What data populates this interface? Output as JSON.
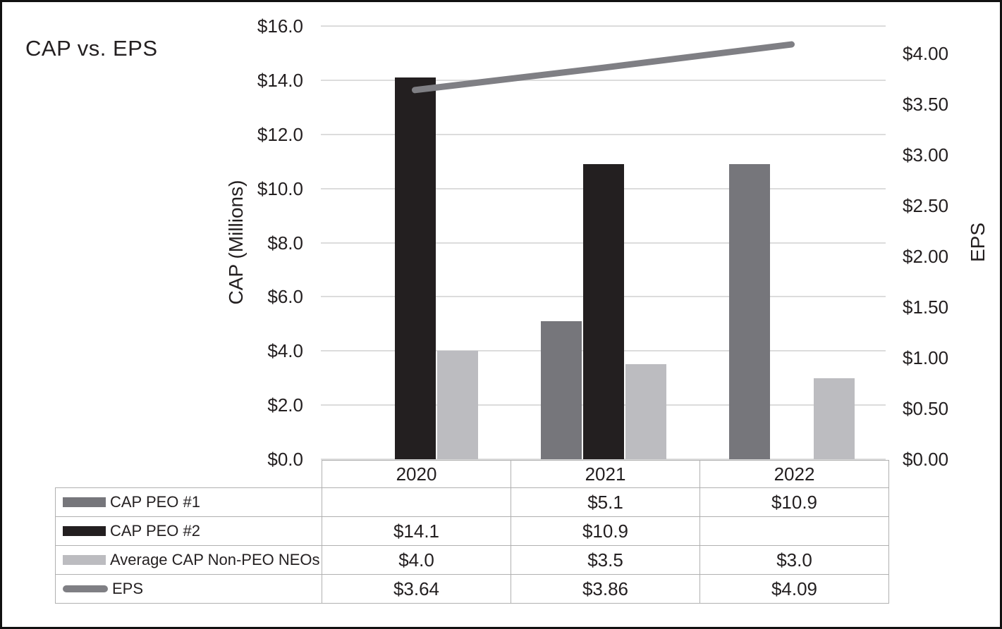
{
  "chart_data": {
    "type": "combo-bar-line",
    "title": "CAP vs. EPS",
    "categories": [
      "2020",
      "2021",
      "2022"
    ],
    "bar_series": [
      {
        "name": "CAP PEO #1",
        "color": "#76767b",
        "values": [
          null,
          5.1,
          10.9
        ]
      },
      {
        "name": "CAP PEO #2",
        "color": "#231f20",
        "values": [
          14.1,
          10.9,
          null
        ]
      },
      {
        "name": "Average CAP Non-PEO NEOs",
        "color": "#bcbcc0",
        "values": [
          4.0,
          3.5,
          3.0
        ]
      }
    ],
    "line_series": {
      "name": "EPS",
      "color": "#7f7f84",
      "values": [
        3.64,
        3.86,
        4.09
      ]
    },
    "left_axis": {
      "title": "CAP (Millions)",
      "min": 0,
      "max": 16,
      "tick_values": [
        16,
        14,
        12,
        10,
        8,
        6,
        4,
        2,
        0
      ],
      "tick_labels": [
        "$16.0",
        "$14.0",
        "$12.0",
        "$10.0",
        "$8.0",
        "$6.0",
        "$4.0",
        "$2.0",
        "$0.0"
      ]
    },
    "right_axis": {
      "title": "EPS",
      "min": 0,
      "tick_values": [
        4,
        3.5,
        3,
        2.5,
        2,
        1.5,
        1,
        0.5,
        0
      ],
      "tick_labels": [
        "$4.00",
        "$3.50",
        "$3.00",
        "$2.50",
        "$2.00",
        "$1.50",
        "$1.00",
        "$0.50",
        "$0.00"
      ]
    },
    "gridlines": true,
    "legend_position": "table-left"
  },
  "table": {
    "years": [
      "2020",
      "2021",
      "2022"
    ],
    "rows": [
      {
        "label": "CAP PEO #1",
        "values": [
          "",
          "$5.1",
          "$10.9"
        ]
      },
      {
        "label": "CAP PEO #2",
        "values": [
          "$14.1",
          "$10.9",
          ""
        ]
      },
      {
        "label": "Average CAP Non-PEO NEOs",
        "values": [
          "$4.0",
          "$3.5",
          "$3.0"
        ]
      },
      {
        "label": "EPS",
        "values": [
          "$3.64",
          "$3.86",
          "$4.09"
        ]
      }
    ]
  },
  "colors": {
    "grid": "#dcdcdc",
    "table_border": "#b0b0b0",
    "text": "#231f20",
    "frame_border": "#111111"
  }
}
